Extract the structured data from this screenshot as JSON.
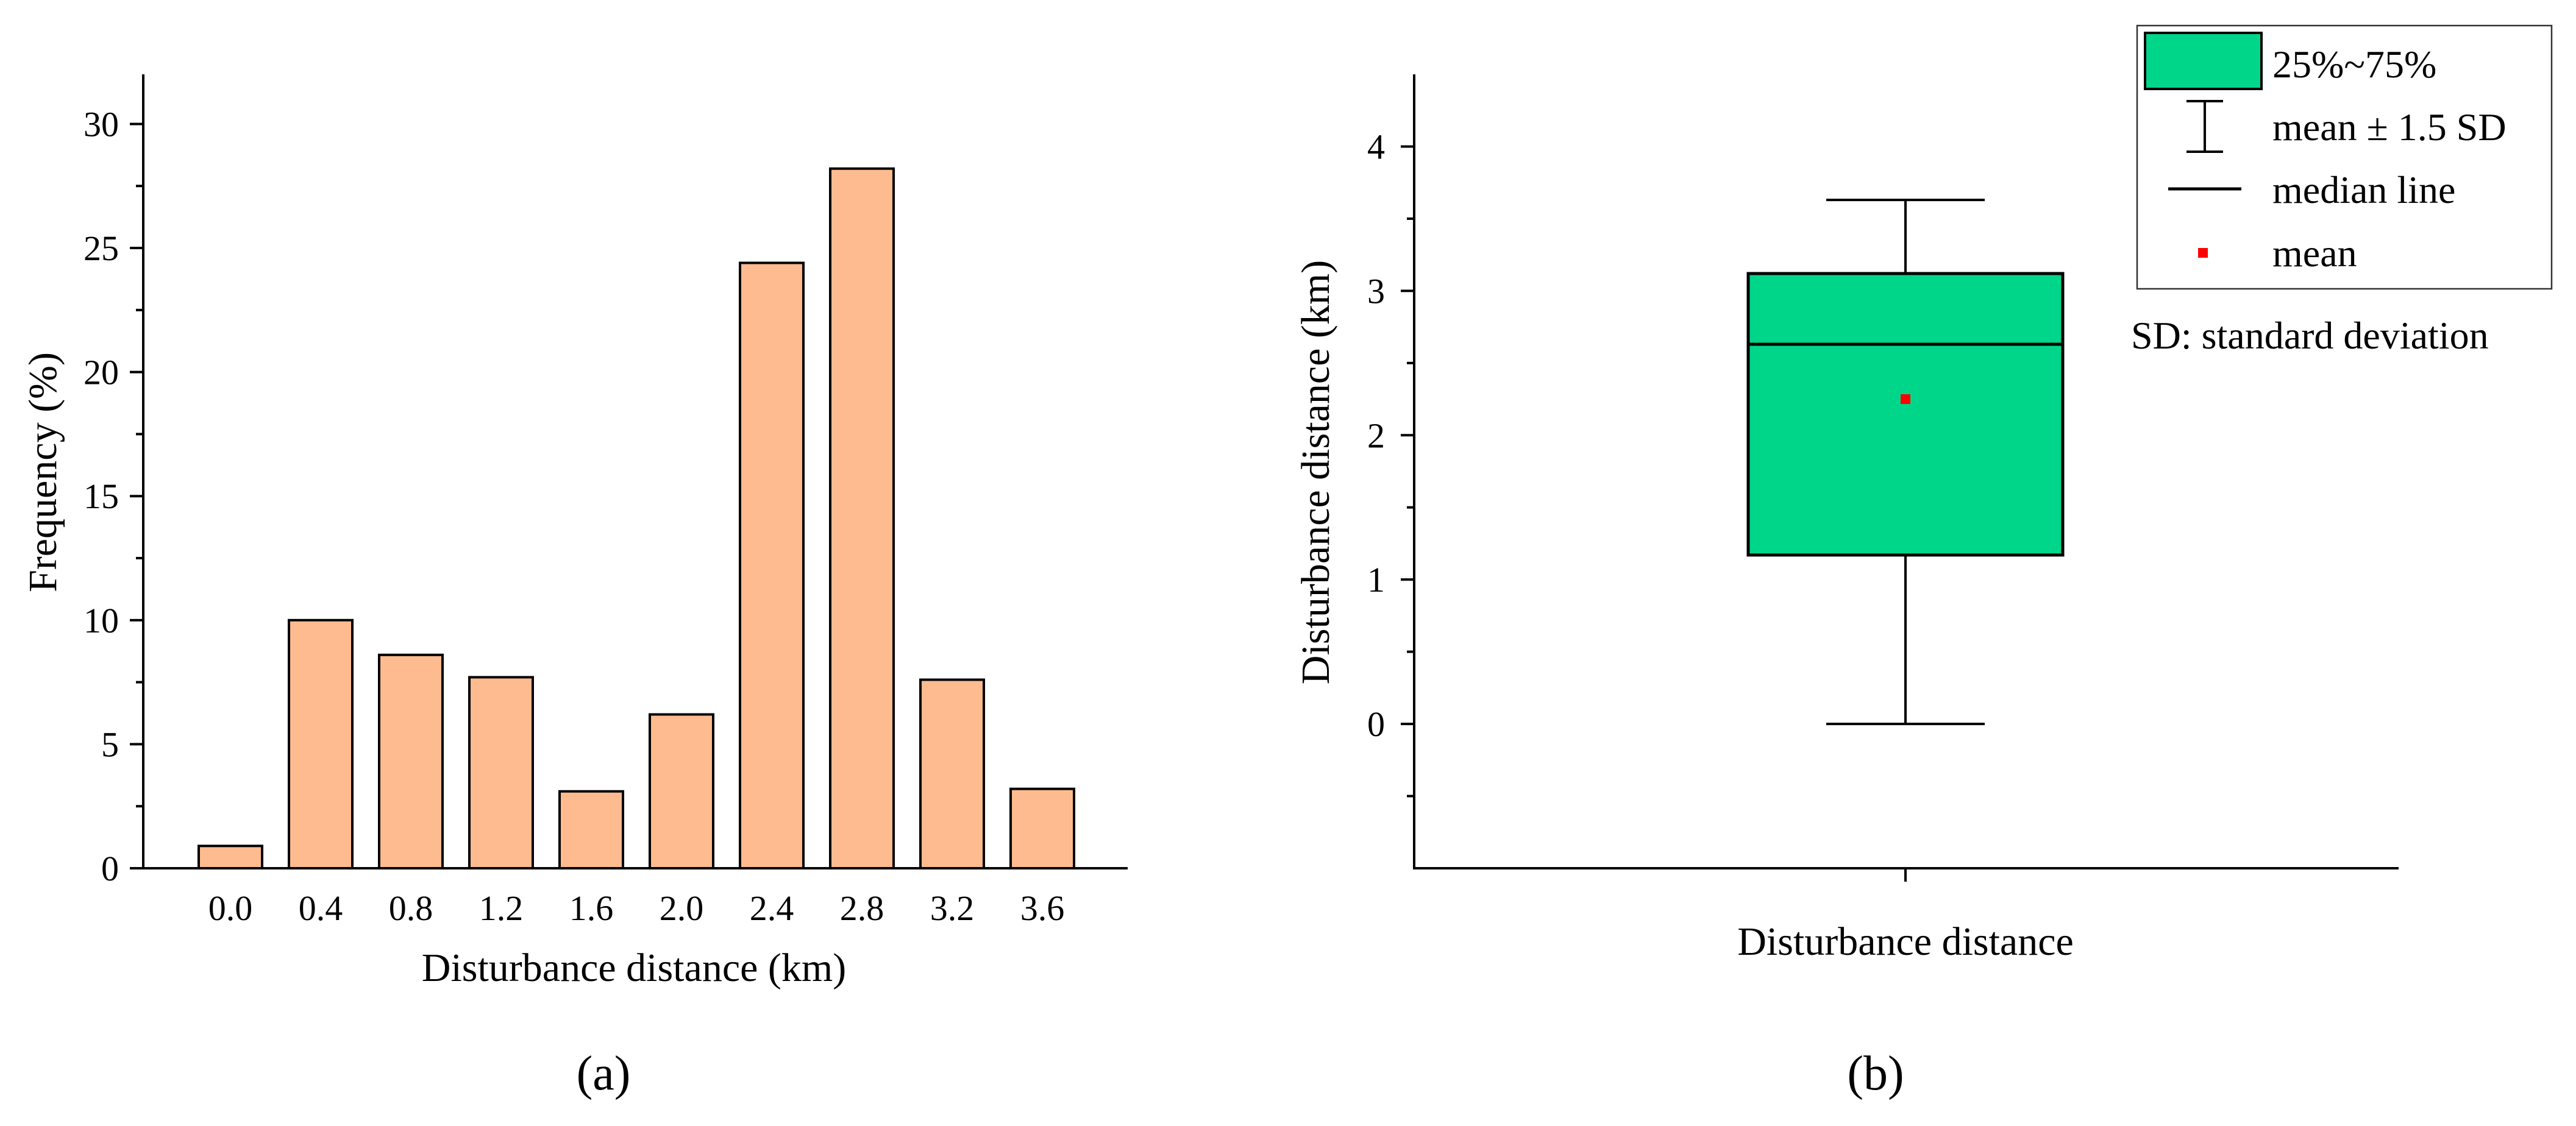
{
  "chart_data": [
    {
      "type": "bar",
      "panel_label": "(a)",
      "title": "",
      "xlabel": "Disturbance distance (km)",
      "ylabel": "Frequency (%)",
      "categories": [
        "0.0",
        "0.4",
        "0.8",
        "1.2",
        "1.6",
        "2.0",
        "2.4",
        "2.8",
        "3.2",
        "3.6"
      ],
      "values": [
        0.9,
        10.0,
        8.6,
        7.7,
        3.1,
        6.2,
        24.4,
        28.2,
        7.6,
        3.2
      ],
      "ylim": [
        0,
        32
      ],
      "yticks": [
        0,
        5,
        10,
        15,
        20,
        25,
        30
      ],
      "bar_color": "#fdbb8f",
      "grid": false
    },
    {
      "type": "box",
      "panel_label": "(b)",
      "title": "",
      "xlabel": "Disturbance distance",
      "ylabel": "Disturbance distance (km)",
      "ylim": [
        -1,
        4.5
      ],
      "yticks": [
        0,
        1,
        2,
        3,
        4
      ],
      "box": {
        "q1": 1.17,
        "median": 2.63,
        "q3": 3.12,
        "mean": 2.25,
        "whisker_low": 0.0,
        "whisker_high": 3.63
      },
      "box_color": "#00d68a",
      "mean_color": "#ff0000",
      "legend": {
        "position": "top-right",
        "entries": [
          "25%~75%",
          "mean ± 1.5 SD",
          "median line",
          "mean"
        ],
        "note": "SD: standard deviation"
      }
    }
  ]
}
